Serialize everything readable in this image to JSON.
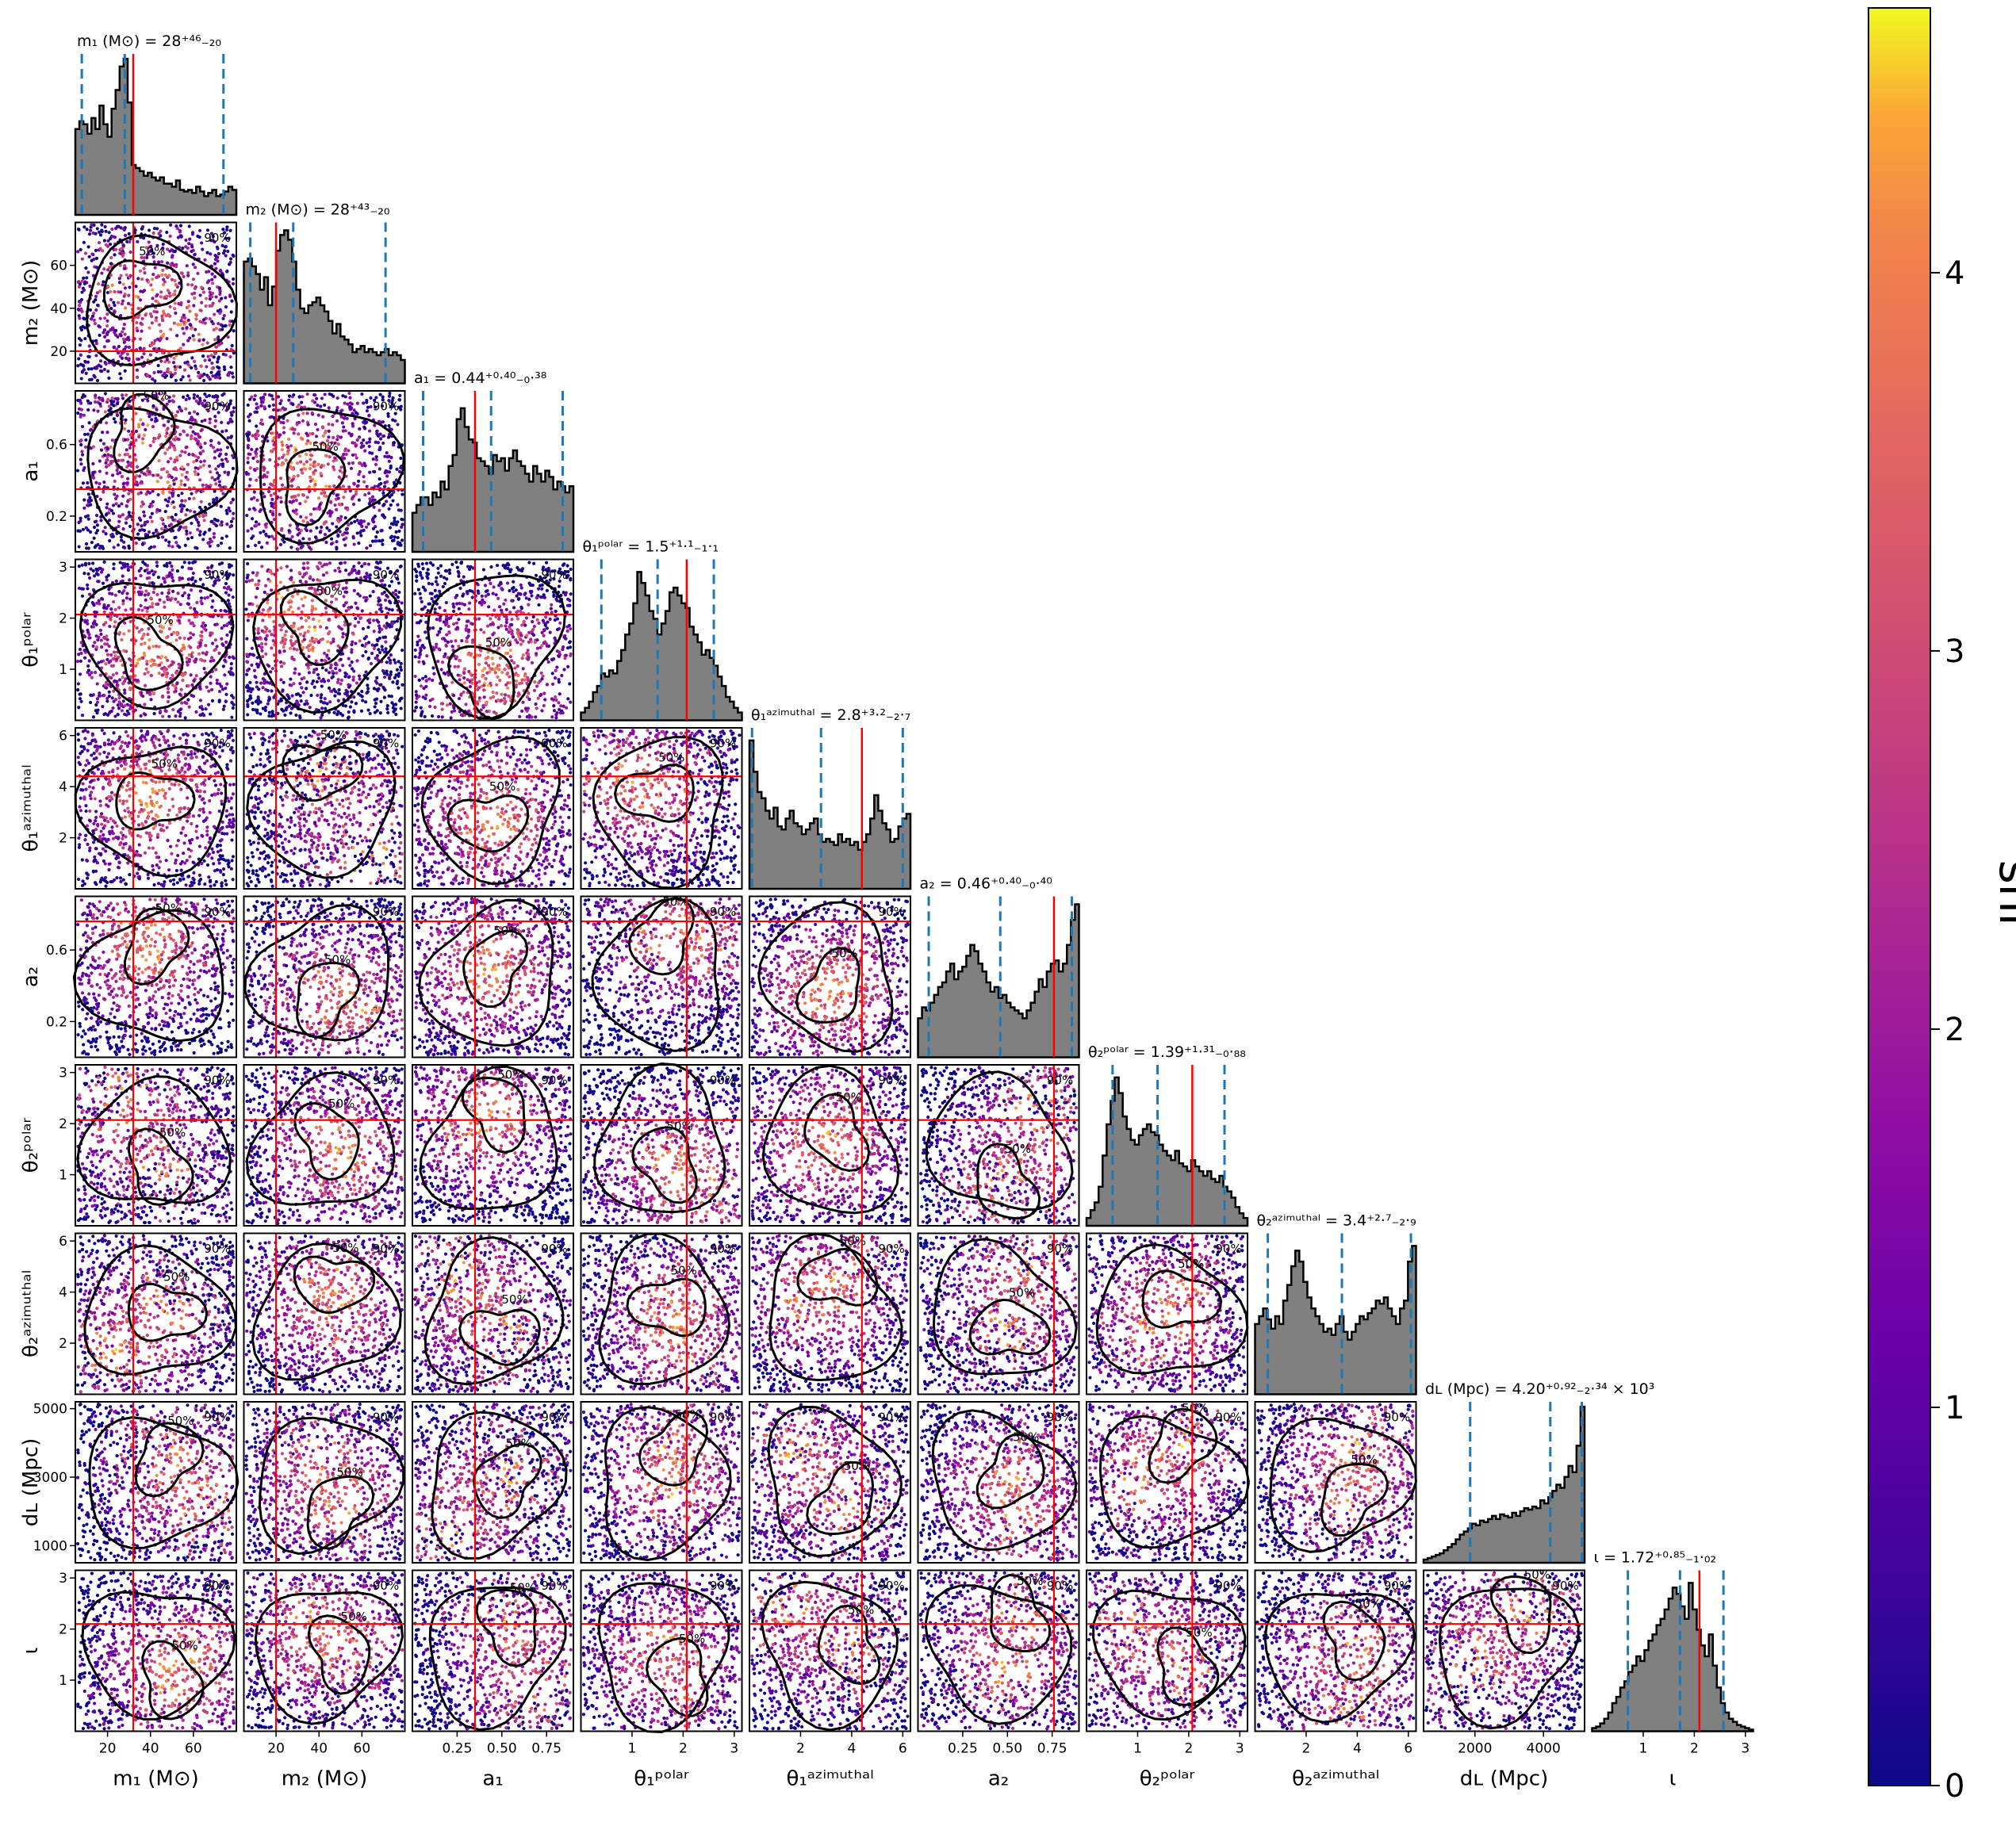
{
  "chart_data": {
    "type": "scatter",
    "figure": "corner",
    "parameters": [
      {
        "key": "m1",
        "axis_label": "m₁ (M⊙)",
        "title": "m₁ (M⊙) = 28⁺⁴⁶₋₂₀",
        "range": [
          5,
          80
        ],
        "ticks": [
          20,
          40,
          60
        ],
        "tick_labels": [
          "20",
          "40",
          "60"
        ],
        "median": 28,
        "lower": 8,
        "upper": 74,
        "truth": 32,
        "hist": [
          0.55,
          0.6,
          0.58,
          0.52,
          0.62,
          0.55,
          0.7,
          0.58,
          0.5,
          0.68,
          0.8,
          0.95,
          1.0,
          0.72,
          0.32,
          0.3,
          0.28,
          0.25,
          0.27,
          0.24,
          0.22,
          0.24,
          0.2,
          0.2,
          0.18,
          0.22,
          0.16,
          0.15,
          0.16,
          0.14,
          0.18,
          0.15,
          0.12,
          0.14,
          0.16,
          0.12,
          0.13,
          0.15,
          0.18,
          0.16
        ]
      },
      {
        "key": "m2",
        "axis_label": "m₂ (M⊙)",
        "title": "m₂ (M⊙) = 28⁺⁴³₋₂₀",
        "range": [
          5,
          80
        ],
        "ticks": [
          20,
          40,
          60
        ],
        "tick_labels": [
          "20",
          "40",
          "60"
        ],
        "median": 28,
        "lower": 8,
        "upper": 71,
        "truth": 20,
        "hist": [
          0.78,
          0.8,
          0.75,
          0.7,
          0.6,
          0.68,
          0.5,
          0.62,
          0.85,
          0.95,
          0.98,
          0.92,
          0.78,
          0.6,
          0.48,
          0.45,
          0.5,
          0.52,
          0.55,
          0.5,
          0.46,
          0.4,
          0.32,
          0.38,
          0.3,
          0.28,
          0.25,
          0.2,
          0.22,
          0.24,
          0.2,
          0.22,
          0.2,
          0.18,
          0.2,
          0.22,
          0.18,
          0.2,
          0.18,
          0.15
        ]
      },
      {
        "key": "a1",
        "axis_label": "a₁",
        "title": "a₁ = 0.44⁺⁰·⁴⁰₋₀·³⁸",
        "range": [
          0,
          0.9
        ],
        "ticks": [
          0.25,
          0.5,
          0.75
        ],
        "tick_labels": [
          "0.25",
          "0.50",
          "0.75"
        ],
        "y_ticks": [
          0.2,
          0.6
        ],
        "y_tick_labels": [
          "0.2",
          "0.6"
        ],
        "median": 0.44,
        "lower": 0.06,
        "upper": 0.84,
        "truth": 0.35,
        "hist": [
          0.25,
          0.3,
          0.35,
          0.35,
          0.3,
          0.38,
          0.35,
          0.45,
          0.4,
          0.55,
          0.62,
          0.85,
          0.92,
          0.8,
          0.72,
          0.7,
          0.6,
          0.58,
          0.55,
          0.5,
          0.62,
          0.58,
          0.6,
          0.52,
          0.6,
          0.65,
          0.58,
          0.55,
          0.5,
          0.45,
          0.55,
          0.5,
          0.45,
          0.52,
          0.48,
          0.4,
          0.45,
          0.42,
          0.38,
          0.42
        ]
      },
      {
        "key": "t1p",
        "axis_label": "θ₁ᵖᵒˡᵃʳ",
        "title": "θ₁ᵖᵒˡᵃʳ = 1.5⁺¹·¹₋₁·₁",
        "range": [
          0,
          3.15
        ],
        "ticks": [
          1,
          2,
          3
        ],
        "tick_labels": [
          "1",
          "2",
          "3"
        ],
        "median": 1.5,
        "lower": 0.4,
        "upper": 2.6,
        "truth": 2.07,
        "hist": [
          0.05,
          0.08,
          0.12,
          0.18,
          0.22,
          0.3,
          0.28,
          0.32,
          0.3,
          0.38,
          0.45,
          0.55,
          0.62,
          0.75,
          0.95,
          0.88,
          0.8,
          0.7,
          0.65,
          0.55,
          0.62,
          0.7,
          0.82,
          0.85,
          0.8,
          0.75,
          0.72,
          0.6,
          0.55,
          0.5,
          0.42,
          0.45,
          0.4,
          0.35,
          0.28,
          0.22,
          0.15,
          0.12,
          0.08,
          0.05
        ]
      },
      {
        "key": "t1a",
        "axis_label": "θ₁ᵃᶻⁱᵐᵘᵗʰᵃˡ",
        "title": "θ₁ᵃᶻⁱᵐᵘᵗʰᵃˡ = 2.8⁺³·²₋₂·₇",
        "range": [
          0,
          6.3
        ],
        "ticks": [
          2,
          4,
          6
        ],
        "tick_labels": [
          "2",
          "4",
          "6"
        ],
        "median": 2.8,
        "lower": 0.1,
        "upper": 6.0,
        "truth": 4.4,
        "hist": [
          0.95,
          0.75,
          0.62,
          0.58,
          0.5,
          0.45,
          0.52,
          0.4,
          0.38,
          0.45,
          0.5,
          0.42,
          0.4,
          0.35,
          0.38,
          0.42,
          0.45,
          0.35,
          0.3,
          0.32,
          0.3,
          0.28,
          0.35,
          0.3,
          0.32,
          0.28,
          0.3,
          0.25,
          0.3,
          0.35,
          0.45,
          0.6,
          0.5,
          0.42,
          0.38,
          0.3,
          0.32,
          0.4,
          0.45,
          0.48
        ]
      },
      {
        "key": "a2",
        "axis_label": "a₂",
        "title": "a₂ = 0.46⁺⁰·⁴⁰₋₀·⁴⁰",
        "range": [
          0,
          0.9
        ],
        "ticks": [
          0.25,
          0.5,
          0.75
        ],
        "tick_labels": [
          "0.25",
          "0.50",
          "0.75"
        ],
        "y_ticks": [
          0.2,
          0.6
        ],
        "y_tick_labels": [
          "0.2",
          "0.6"
        ],
        "median": 0.46,
        "lower": 0.06,
        "upper": 0.86,
        "truth": 0.76,
        "hist": [
          0.25,
          0.32,
          0.3,
          0.35,
          0.4,
          0.45,
          0.48,
          0.55,
          0.6,
          0.5,
          0.55,
          0.58,
          0.65,
          0.72,
          0.68,
          0.6,
          0.55,
          0.48,
          0.42,
          0.45,
          0.38,
          0.4,
          0.35,
          0.32,
          0.3,
          0.28,
          0.25,
          0.3,
          0.35,
          0.42,
          0.5,
          0.45,
          0.55,
          0.6,
          0.62,
          0.55,
          0.6,
          0.72,
          0.88,
          0.98
        ]
      },
      {
        "key": "t2p",
        "axis_label": "θ₂ᵖᵒˡᵃʳ",
        "title": "θ₂ᵖᵒˡᵃʳ = 1.39⁺¹·³¹₋₀·₈₈",
        "range": [
          0,
          3.15
        ],
        "ticks": [
          1,
          2,
          3
        ],
        "tick_labels": [
          "1",
          "2",
          "3"
        ],
        "median": 1.39,
        "lower": 0.51,
        "upper": 2.7,
        "truth": 2.07,
        "hist": [
          0.05,
          0.1,
          0.15,
          0.25,
          0.45,
          0.65,
          0.8,
          0.95,
          0.85,
          0.7,
          0.62,
          0.55,
          0.52,
          0.58,
          0.62,
          0.65,
          0.6,
          0.58,
          0.52,
          0.48,
          0.45,
          0.42,
          0.48,
          0.4,
          0.38,
          0.35,
          0.42,
          0.38,
          0.35,
          0.32,
          0.35,
          0.3,
          0.28,
          0.32,
          0.25,
          0.22,
          0.18,
          0.12,
          0.08,
          0.05
        ]
      },
      {
        "key": "t2a",
        "axis_label": "θ₂ᵃᶻⁱᵐᵘᵗʰᵃˡ",
        "title": "θ₂ᵃᶻⁱᵐᵘᵗʰᵃˡ = 3.4⁺²·⁷₋₂·₉",
        "range": [
          0,
          6.3
        ],
        "ticks": [
          2,
          4,
          6
        ],
        "tick_labels": [
          "2",
          "4",
          "6"
        ],
        "median": 3.4,
        "lower": 0.5,
        "upper": 6.1,
        "truth": null,
        "hist": [
          0.45,
          0.5,
          0.55,
          0.48,
          0.42,
          0.5,
          0.45,
          0.6,
          0.7,
          0.82,
          0.92,
          0.85,
          0.72,
          0.62,
          0.55,
          0.5,
          0.45,
          0.4,
          0.42,
          0.38,
          0.45,
          0.5,
          0.4,
          0.35,
          0.4,
          0.45,
          0.5,
          0.48,
          0.52,
          0.55,
          0.6,
          0.58,
          0.62,
          0.55,
          0.5,
          0.45,
          0.55,
          0.6,
          0.85,
          0.95
        ]
      },
      {
        "key": "dl",
        "axis_label": "dʟ (Mpc)",
        "title": "dʟ (Mpc) = 4.20⁺⁰·⁹²₋₂·³⁴ × 10³",
        "range": [
          500,
          5200
        ],
        "ticks": [
          2000,
          4000
        ],
        "tick_labels": [
          "2000",
          "4000"
        ],
        "y_ticks": [
          1000,
          3000,
          5000
        ],
        "y_tick_labels": [
          "1000",
          "3000",
          "5000"
        ],
        "median": 4200,
        "lower": 1860,
        "upper": 5120,
        "truth": null,
        "hist": [
          0.02,
          0.03,
          0.04,
          0.05,
          0.06,
          0.08,
          0.1,
          0.12,
          0.15,
          0.18,
          0.2,
          0.22,
          0.25,
          0.24,
          0.27,
          0.26,
          0.28,
          0.3,
          0.28,
          0.31,
          0.3,
          0.29,
          0.32,
          0.3,
          0.33,
          0.35,
          0.34,
          0.36,
          0.35,
          0.4,
          0.38,
          0.42,
          0.46,
          0.5,
          0.48,
          0.55,
          0.62,
          0.58,
          0.75,
          1.0
        ]
      },
      {
        "key": "iota",
        "axis_label": "ι",
        "title": "ι = 1.72⁺⁰·⁸⁵₋₁·₀₂",
        "range": [
          0,
          3.15
        ],
        "ticks": [
          1,
          2,
          3
        ],
        "tick_labels": [
          "1",
          "2",
          "3"
        ],
        "median": 1.72,
        "lower": 0.7,
        "upper": 2.57,
        "truth": 2.1,
        "hist": [
          0.02,
          0.03,
          0.05,
          0.08,
          0.12,
          0.18,
          0.22,
          0.28,
          0.32,
          0.38,
          0.42,
          0.48,
          0.45,
          0.52,
          0.58,
          0.62,
          0.68,
          0.72,
          0.78,
          0.85,
          0.92,
          0.88,
          0.8,
          0.72,
          0.95,
          0.78,
          0.65,
          0.55,
          0.48,
          0.62,
          0.42,
          0.28,
          0.18,
          0.12,
          0.08,
          0.06,
          0.04,
          0.03,
          0.02,
          0.01
        ]
      }
    ],
    "truths_2d": {
      "m1": 32,
      "m2": 20,
      "a1": 0.35,
      "t1p": 2.07,
      "t1a": 4.4,
      "a2": 0.76,
      "t2p": 2.07,
      "t2a": null,
      "dl": null,
      "iota": 2.1
    },
    "contour_levels": [
      "50%",
      "90%"
    ],
    "colorbar": {
      "label": "snr",
      "range": [
        0,
        4.7
      ],
      "ticks": [
        0,
        1,
        2,
        3,
        4
      ],
      "tick_labels": [
        "0",
        "1",
        "2",
        "3",
        "4"
      ],
      "colormap": "plasma"
    },
    "colors": {
      "histogram_fill": "#808080",
      "quantile_lines": "#1f77b4",
      "truth_lines": "#ff0000",
      "contours": "#000000"
    }
  }
}
